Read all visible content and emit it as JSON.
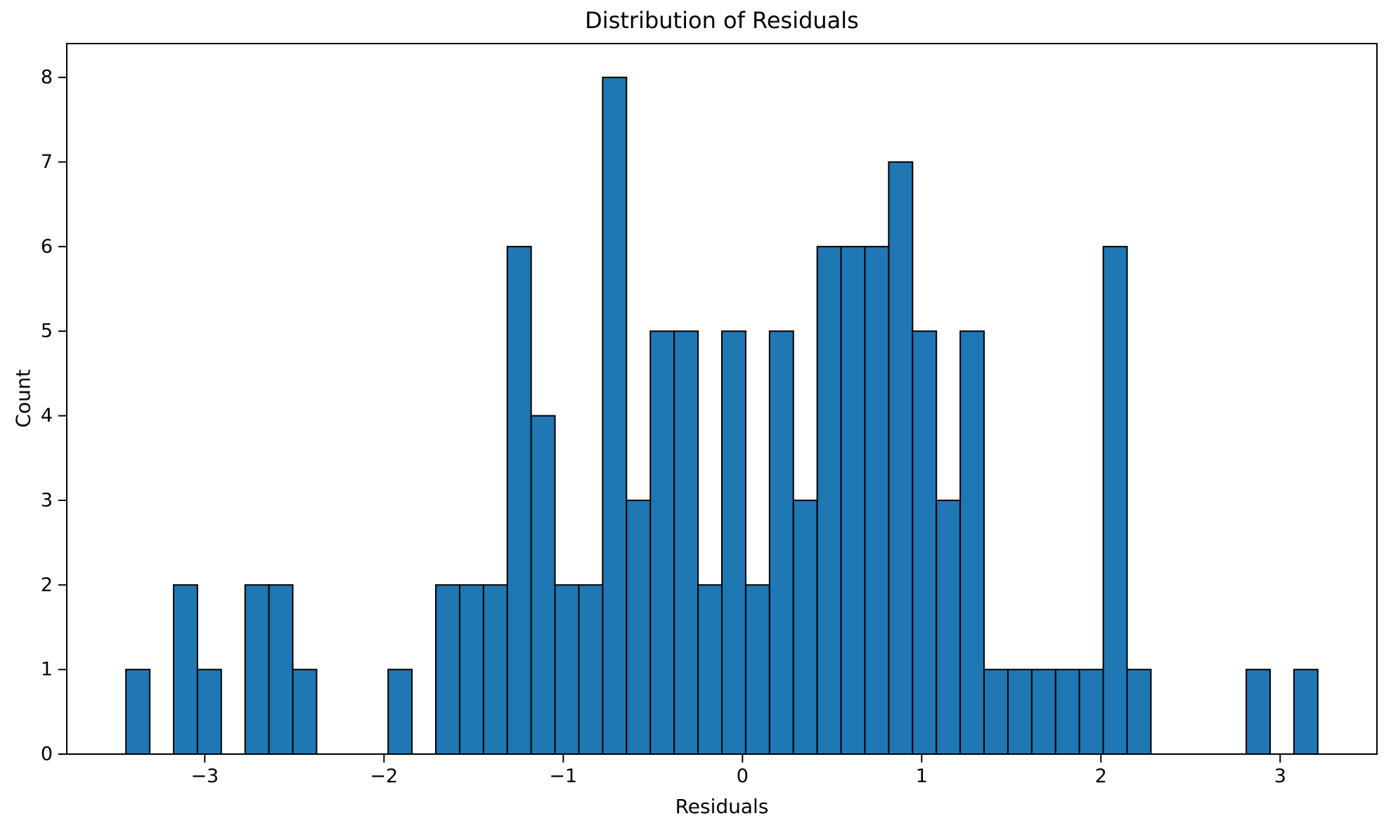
{
  "chart_data": {
    "type": "bar",
    "subtype": "histogram",
    "title": "Distribution of Residuals",
    "xlabel": "Residuals",
    "ylabel": "Count",
    "bin_start": -3.44,
    "bin_width": 0.133,
    "bin_count": 50,
    "counts": [
      1,
      0,
      2,
      1,
      0,
      2,
      2,
      1,
      0,
      0,
      0,
      1,
      0,
      2,
      2,
      2,
      6,
      4,
      2,
      2,
      8,
      3,
      5,
      5,
      2,
      5,
      2,
      5,
      3,
      6,
      6,
      6,
      7,
      5,
      3,
      5,
      1,
      1,
      1,
      1,
      1,
      6,
      1,
      0,
      0,
      0,
      0,
      1,
      0,
      1
    ],
    "xlim": [
      -3.77,
      3.54
    ],
    "ylim": [
      0,
      8.4
    ],
    "xticks": [
      {
        "value": -3,
        "label": "−3"
      },
      {
        "value": -2,
        "label": "−2"
      },
      {
        "value": -1,
        "label": "−1"
      },
      {
        "value": 0,
        "label": "0"
      },
      {
        "value": 1,
        "label": "1"
      },
      {
        "value": 2,
        "label": "2"
      },
      {
        "value": 3,
        "label": "3"
      }
    ],
    "yticks": [
      {
        "value": 0,
        "label": "0"
      },
      {
        "value": 1,
        "label": "1"
      },
      {
        "value": 2,
        "label": "2"
      },
      {
        "value": 3,
        "label": "3"
      },
      {
        "value": 4,
        "label": "4"
      },
      {
        "value": 5,
        "label": "5"
      },
      {
        "value": 6,
        "label": "6"
      },
      {
        "value": 7,
        "label": "7"
      },
      {
        "value": 8,
        "label": "8"
      }
    ],
    "grid": false,
    "legend_position": "none",
    "bar_color": "#1f77b4",
    "bar_edge_color": "#000000",
    "axis_color": "#000000"
  }
}
